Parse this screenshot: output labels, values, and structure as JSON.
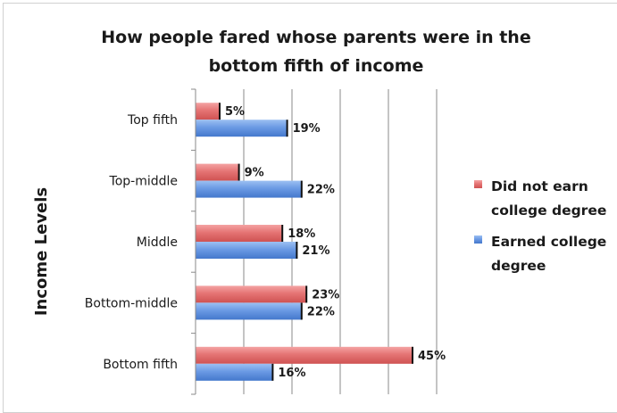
{
  "chart_data": {
    "type": "bar",
    "orientation": "horizontal",
    "title_lines": [
      "How people fared whose parents were in the",
      "bottom fifth of income"
    ],
    "ylabel": "Income Levels",
    "xlabel": "",
    "categories": [
      "Top fifth",
      "Top-middle",
      "Middle",
      "Bottom-middle",
      "Bottom fifth"
    ],
    "series": [
      {
        "name_lines": [
          "Did not earn",
          "college degree"
        ],
        "color": "#e26a6a",
        "values": [
          5,
          9,
          18,
          23,
          45
        ],
        "labels": [
          "5%",
          "9%",
          "18%",
          "23%",
          "45%"
        ]
      },
      {
        "name_lines": [
          "Earned college",
          "degree"
        ],
        "color": "#5b8fde",
        "values": [
          19,
          22,
          21,
          22,
          16
        ],
        "labels": [
          "19%",
          "22%",
          "21%",
          "22%",
          "16%"
        ]
      }
    ],
    "xlim": [
      0,
      50
    ],
    "x_gridlines": true,
    "legend_position": "right"
  }
}
